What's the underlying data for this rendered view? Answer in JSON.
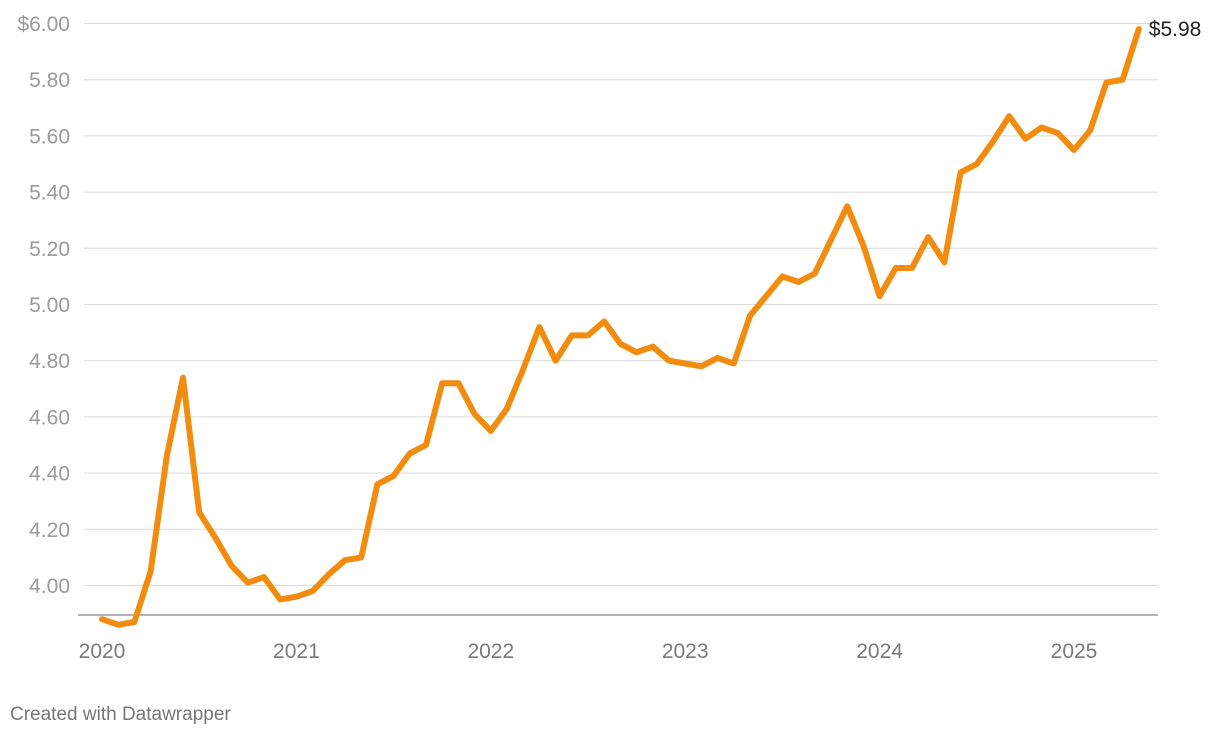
{
  "chart_data": {
    "type": "line",
    "title": "",
    "xlabel": "",
    "ylabel": "",
    "x_tick_labels": [
      "2020",
      "2021",
      "2022",
      "2023",
      "2024",
      "2025"
    ],
    "y_tick_labels": [
      "$6.00",
      "5.80",
      "5.60",
      "5.40",
      "5.20",
      "5.00",
      "4.80",
      "4.60",
      "4.40",
      "4.20",
      "4.00"
    ],
    "y_tick_values": [
      6.0,
      5.8,
      5.6,
      5.4,
      5.2,
      5.0,
      4.8,
      4.6,
      4.4,
      4.2,
      4.0
    ],
    "ylim": [
      3.85,
      6.05
    ],
    "xlim": [
      "2020-01",
      "2025-12"
    ],
    "grid": true,
    "line_color": "#f28c0f",
    "end_label": "$5.98",
    "series": [
      {
        "x": [
          "2020-01",
          "2020-02",
          "2020-03",
          "2020-04",
          "2020-05",
          "2020-06",
          "2020-07",
          "2020-08",
          "2020-09",
          "2020-10",
          "2020-11",
          "2020-12",
          "2021-01",
          "2021-02",
          "2021-03",
          "2021-04",
          "2021-05",
          "2021-06",
          "2021-07",
          "2021-08",
          "2021-09",
          "2021-10",
          "2021-11",
          "2021-12",
          "2022-01",
          "2022-02",
          "2022-03",
          "2022-04",
          "2022-05",
          "2022-06",
          "2022-07",
          "2022-08",
          "2022-09",
          "2022-10",
          "2022-11",
          "2022-12",
          "2023-01",
          "2023-02",
          "2023-03",
          "2023-04",
          "2023-05",
          "2023-06",
          "2023-07",
          "2023-08",
          "2023-09",
          "2023-10",
          "2023-11",
          "2023-12",
          "2024-01",
          "2024-02",
          "2024-03",
          "2024-04",
          "2024-05",
          "2024-06",
          "2024-07",
          "2024-08",
          "2024-09",
          "2024-10",
          "2024-11",
          "2024-12",
          "2025-01",
          "2025-02",
          "2025-03",
          "2025-04",
          "2025-05"
        ],
        "values": [
          3.88,
          3.86,
          3.87,
          4.05,
          4.46,
          4.74,
          4.26,
          4.17,
          4.07,
          4.01,
          4.03,
          3.95,
          3.96,
          3.98,
          4.04,
          4.09,
          4.1,
          4.36,
          4.39,
          4.47,
          4.5,
          4.72,
          4.72,
          4.61,
          4.55,
          4.63,
          4.77,
          4.92,
          4.8,
          4.89,
          4.89,
          4.94,
          4.86,
          4.83,
          4.85,
          4.8,
          4.79,
          4.78,
          4.81,
          4.79,
          4.96,
          5.03,
          5.1,
          5.08,
          5.11,
          5.23,
          5.35,
          5.21,
          5.03,
          5.13,
          5.13,
          5.24,
          5.15,
          5.47,
          5.5,
          5.58,
          5.67,
          5.59,
          5.63,
          5.61,
          5.55,
          5.62,
          5.79,
          5.8,
          5.98
        ]
      }
    ]
  },
  "footer": {
    "credit": "Created with Datawrapper"
  }
}
